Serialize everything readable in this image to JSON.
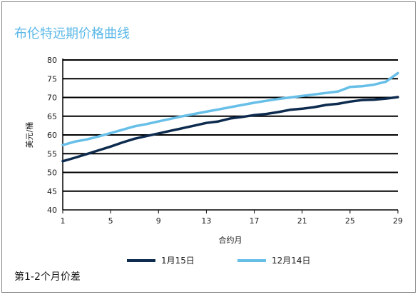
{
  "chart_data": {
    "type": "line",
    "title": "布伦特远期价格曲线",
    "xlabel": "合约月",
    "ylabel": "美元/桶",
    "xlim": [
      1,
      29
    ],
    "ylim": [
      40,
      80
    ],
    "x_ticks": [
      1,
      5,
      9,
      13,
      17,
      21,
      25,
      29
    ],
    "y_ticks": [
      40,
      45,
      50,
      55,
      60,
      65,
      70,
      75,
      80
    ],
    "grid": "horizontal",
    "legend_position": "bottom",
    "series": [
      {
        "name": "1月15日",
        "color": "#0d2b4e",
        "x": [
          1,
          2,
          3,
          4,
          5,
          6,
          7,
          8,
          9,
          10,
          11,
          12,
          13,
          14,
          15,
          16,
          17,
          18,
          19,
          20,
          21,
          22,
          23,
          24,
          25,
          26,
          27,
          28,
          29
        ],
        "values": [
          53.0,
          53.9,
          54.9,
          55.9,
          56.9,
          58.0,
          59.0,
          59.7,
          60.4,
          61.1,
          61.8,
          62.5,
          63.2,
          63.6,
          64.4,
          64.8,
          65.3,
          65.6,
          66.1,
          66.7,
          67.0,
          67.4,
          68.0,
          68.3,
          68.9,
          69.3,
          69.4,
          69.7,
          70.1
        ]
      },
      {
        "name": "12月14日",
        "color": "#67bfe8",
        "x": [
          1,
          2,
          3,
          4,
          5,
          6,
          7,
          8,
          9,
          10,
          11,
          12,
          13,
          14,
          15,
          16,
          17,
          18,
          19,
          20,
          21,
          22,
          23,
          24,
          25,
          26,
          27,
          28,
          29
        ],
        "values": [
          57.3,
          58.2,
          58.8,
          59.6,
          60.5,
          61.4,
          62.3,
          62.9,
          63.6,
          64.3,
          65.0,
          65.6,
          66.2,
          66.8,
          67.4,
          68.0,
          68.6,
          69.1,
          69.6,
          70.0,
          70.4,
          70.8,
          71.2,
          71.6,
          72.8,
          73.0,
          73.4,
          74.2,
          76.5
        ]
      }
    ]
  },
  "footnote": "第1-2个月价差"
}
